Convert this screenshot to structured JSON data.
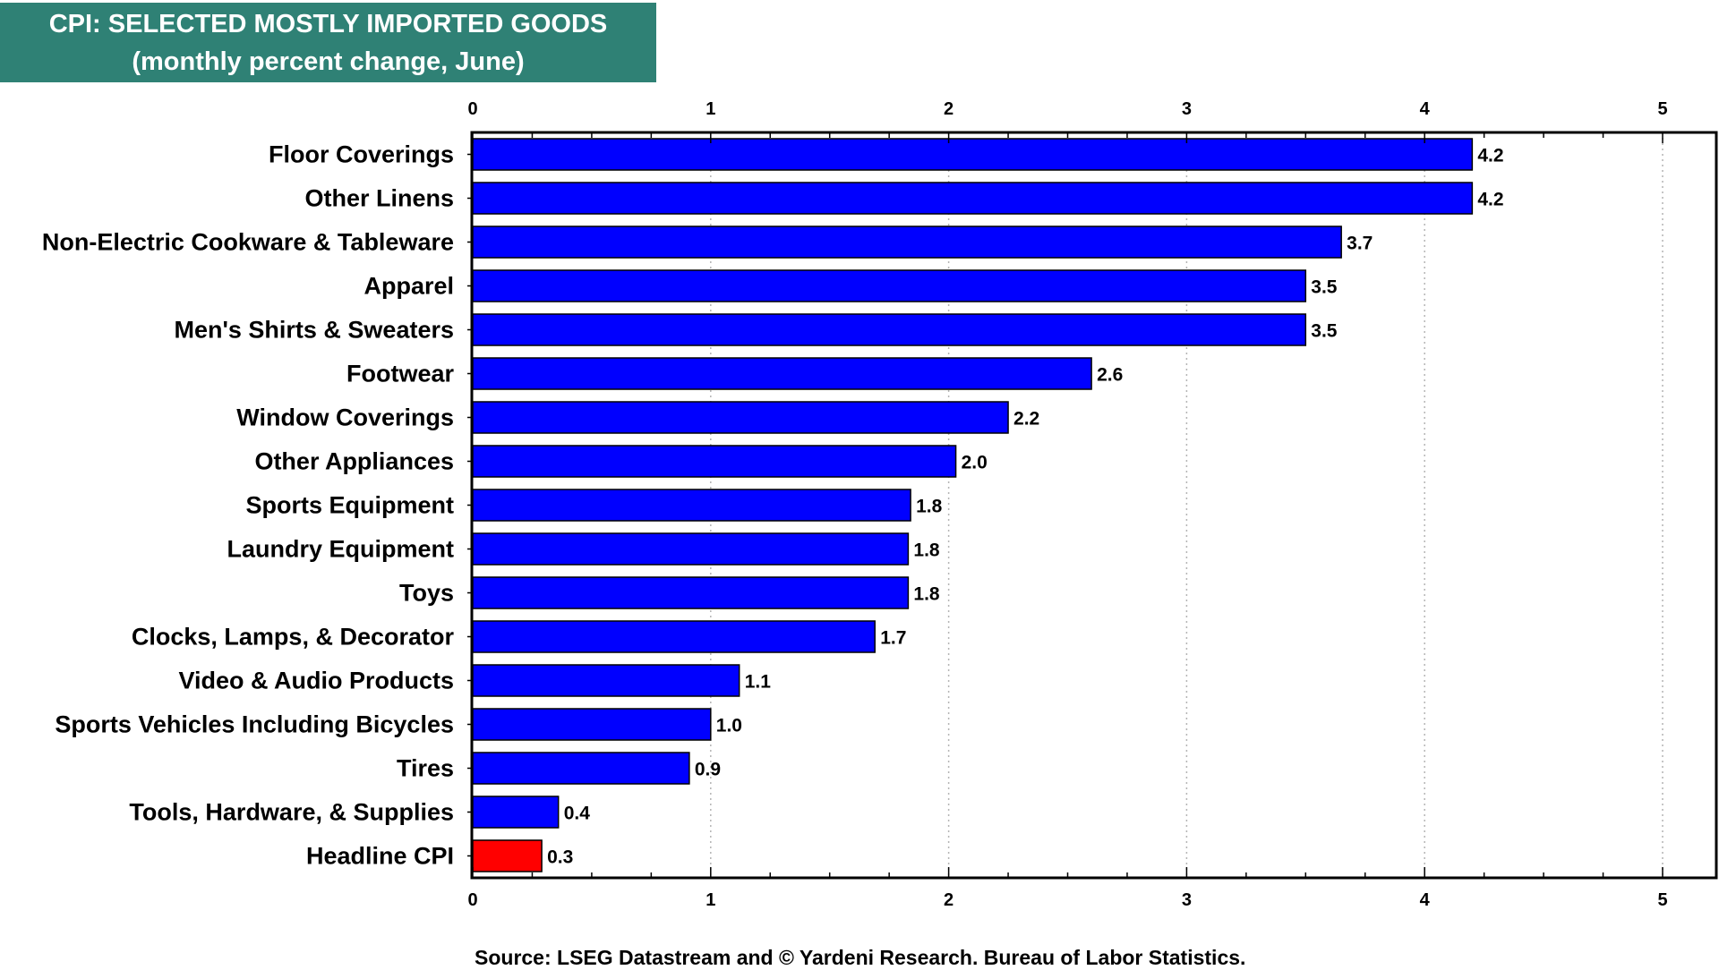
{
  "chart_data": {
    "type": "bar",
    "orientation": "horizontal",
    "title": "CPI: SELECTED MOSTLY IMPORTED GOODS",
    "subtitle": "(monthly percent change, June)",
    "categories": [
      "Floor Coverings",
      "Other Linens",
      "Non-Electric Cookware & Tableware",
      "Apparel",
      "Men's Shirts & Sweaters",
      "Footwear",
      "Window Coverings",
      "Other Appliances",
      "Sports Equipment",
      "Laundry Equipment",
      "Toys",
      "Clocks, Lamps, & Decorator",
      "Video & Audio Products",
      "Sports Vehicles Including Bicycles",
      "Tires",
      "Tools, Hardware, & Supplies",
      "Headline CPI"
    ],
    "values": [
      4.2,
      4.2,
      3.65,
      3.5,
      3.5,
      2.6,
      2.25,
      2.03,
      1.84,
      1.83,
      1.83,
      1.69,
      1.12,
      1.0,
      0.91,
      0.36,
      0.29
    ],
    "value_labels": [
      "4.2",
      "4.2",
      "3.7",
      "3.5",
      "3.5",
      "2.6",
      "2.2",
      "2.0",
      "1.8",
      "1.8",
      "1.8",
      "1.7",
      "1.1",
      "1.0",
      "0.9",
      "0.4",
      "0.3"
    ],
    "bar_colors": [
      "#0000ff",
      "#0000ff",
      "#0000ff",
      "#0000ff",
      "#0000ff",
      "#0000ff",
      "#0000ff",
      "#0000ff",
      "#0000ff",
      "#0000ff",
      "#0000ff",
      "#0000ff",
      "#0000ff",
      "#0000ff",
      "#0000ff",
      "#0000ff",
      "#ff0000"
    ],
    "xlim": [
      0,
      5.23
    ],
    "xticks": [
      0,
      1,
      2,
      3,
      4,
      5
    ],
    "xtick_labels": [
      "0",
      "1",
      "2",
      "3",
      "4",
      "5"
    ],
    "grid": "vertical dotted",
    "axis_labels_position": "top and bottom",
    "source": "Source: LSEG Datastream and © Yardeni Research. Bureau of Labor Statistics."
  },
  "colors": {
    "title_background": "#2f8175",
    "title_text": "#ffffff",
    "bar": "#0000ff",
    "highlight_bar": "#ff0000",
    "grid": "#b4b4b4"
  }
}
